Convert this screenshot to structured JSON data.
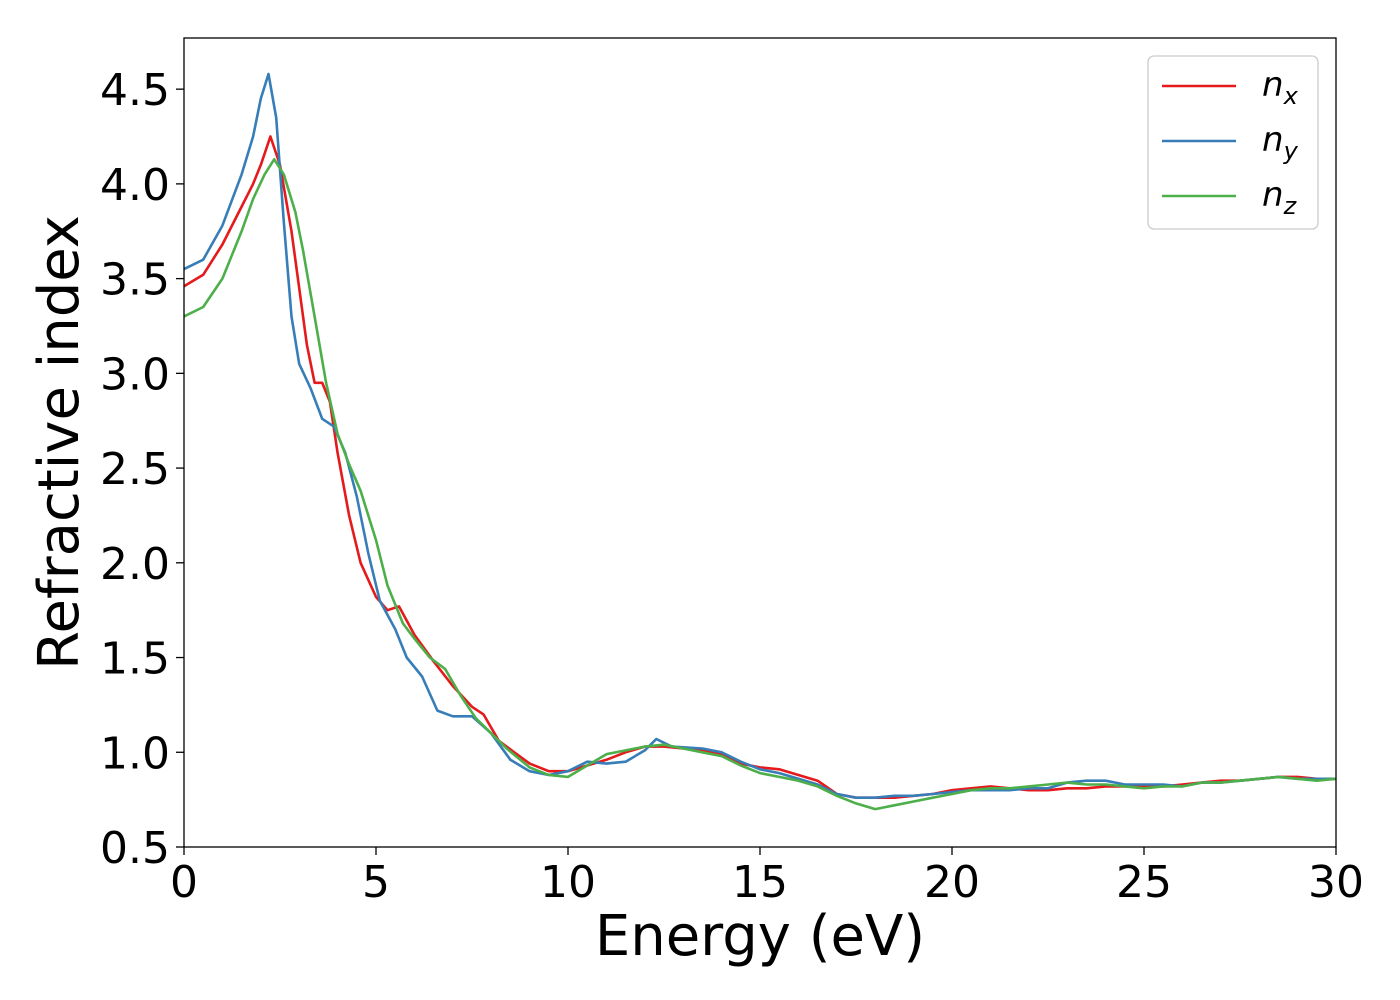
{
  "chart_data": {
    "type": "line",
    "title": "",
    "xlabel": "Energy (eV)",
    "ylabel": "Refractive index",
    "xlim": [
      0,
      30
    ],
    "ylim": [
      0.5,
      4.77
    ],
    "xticks": [
      "0",
      "5",
      "10",
      "15",
      "20",
      "25",
      "30"
    ],
    "xtick_values": [
      0,
      5,
      10,
      15,
      20,
      25,
      30
    ],
    "yticks": [
      "0.5",
      "1.0",
      "1.5",
      "2.0",
      "2.5",
      "3.0",
      "3.5",
      "4.0",
      "4.5"
    ],
    "ytick_values": [
      0.5,
      1.0,
      1.5,
      2.0,
      2.5,
      3.0,
      3.5,
      4.0,
      4.5
    ],
    "grid": false,
    "legend_position": "top-right",
    "series": [
      {
        "name": "n_x",
        "label_base": "n",
        "label_sub": "x",
        "color": "#e41a1c",
        "points": [
          [
            0,
            3.46
          ],
          [
            0.5,
            3.52
          ],
          [
            1.0,
            3.68
          ],
          [
            1.5,
            3.88
          ],
          [
            1.8,
            4.0
          ],
          [
            2.0,
            4.1
          ],
          [
            2.25,
            4.25
          ],
          [
            2.5,
            4.1
          ],
          [
            2.8,
            3.75
          ],
          [
            3.0,
            3.45
          ],
          [
            3.2,
            3.15
          ],
          [
            3.4,
            2.95
          ],
          [
            3.6,
            2.95
          ],
          [
            3.8,
            2.85
          ],
          [
            4.0,
            2.58
          ],
          [
            4.3,
            2.25
          ],
          [
            4.6,
            2.0
          ],
          [
            5.0,
            1.82
          ],
          [
            5.3,
            1.75
          ],
          [
            5.6,
            1.77
          ],
          [
            6.0,
            1.62
          ],
          [
            6.5,
            1.48
          ],
          [
            7.0,
            1.35
          ],
          [
            7.5,
            1.24
          ],
          [
            7.8,
            1.2
          ],
          [
            8.2,
            1.06
          ],
          [
            8.6,
            1.0
          ],
          [
            9.0,
            0.94
          ],
          [
            9.5,
            0.9
          ],
          [
            10.0,
            0.9
          ],
          [
            10.5,
            0.93
          ],
          [
            11.0,
            0.96
          ],
          [
            11.5,
            1.0
          ],
          [
            12.0,
            1.03
          ],
          [
            12.5,
            1.03
          ],
          [
            13.0,
            1.02
          ],
          [
            13.5,
            1.01
          ],
          [
            14.0,
            0.99
          ],
          [
            14.5,
            0.94
          ],
          [
            15.0,
            0.92
          ],
          [
            15.5,
            0.91
          ],
          [
            16.0,
            0.88
          ],
          [
            16.5,
            0.85
          ],
          [
            17.0,
            0.78
          ],
          [
            17.5,
            0.76
          ],
          [
            18.0,
            0.76
          ],
          [
            18.5,
            0.76
          ],
          [
            19.0,
            0.77
          ],
          [
            19.5,
            0.78
          ],
          [
            20.0,
            0.8
          ],
          [
            20.5,
            0.81
          ],
          [
            21.0,
            0.82
          ],
          [
            21.5,
            0.81
          ],
          [
            22.0,
            0.8
          ],
          [
            22.5,
            0.8
          ],
          [
            23.0,
            0.81
          ],
          [
            23.5,
            0.81
          ],
          [
            24.0,
            0.82
          ],
          [
            24.5,
            0.82
          ],
          [
            25.0,
            0.82
          ],
          [
            25.5,
            0.82
          ],
          [
            26.0,
            0.83
          ],
          [
            26.5,
            0.84
          ],
          [
            27.0,
            0.85
          ],
          [
            27.5,
            0.85
          ],
          [
            28.0,
            0.86
          ],
          [
            28.5,
            0.87
          ],
          [
            29.0,
            0.87
          ],
          [
            29.5,
            0.86
          ],
          [
            30.0,
            0.86
          ]
        ]
      },
      {
        "name": "n_y",
        "label_base": "n",
        "label_sub": "y",
        "color": "#377eb8",
        "points": [
          [
            0,
            3.55
          ],
          [
            0.5,
            3.6
          ],
          [
            1.0,
            3.78
          ],
          [
            1.5,
            4.05
          ],
          [
            1.8,
            4.25
          ],
          [
            2.0,
            4.45
          ],
          [
            2.2,
            4.58
          ],
          [
            2.4,
            4.35
          ],
          [
            2.6,
            3.8
          ],
          [
            2.8,
            3.3
          ],
          [
            3.0,
            3.05
          ],
          [
            3.3,
            2.92
          ],
          [
            3.6,
            2.76
          ],
          [
            3.9,
            2.72
          ],
          [
            4.2,
            2.58
          ],
          [
            4.5,
            2.35
          ],
          [
            4.8,
            2.05
          ],
          [
            5.1,
            1.8
          ],
          [
            5.5,
            1.65
          ],
          [
            5.8,
            1.5
          ],
          [
            6.2,
            1.4
          ],
          [
            6.6,
            1.22
          ],
          [
            7.0,
            1.19
          ],
          [
            7.5,
            1.19
          ],
          [
            8.0,
            1.1
          ],
          [
            8.5,
            0.96
          ],
          [
            9.0,
            0.9
          ],
          [
            9.5,
            0.88
          ],
          [
            10.0,
            0.9
          ],
          [
            10.5,
            0.95
          ],
          [
            11.0,
            0.94
          ],
          [
            11.5,
            0.95
          ],
          [
            12.0,
            1.01
          ],
          [
            12.3,
            1.07
          ],
          [
            12.7,
            1.03
          ],
          [
            13.5,
            1.02
          ],
          [
            14.0,
            1.0
          ],
          [
            14.5,
            0.95
          ],
          [
            15.0,
            0.91
          ],
          [
            15.5,
            0.89
          ],
          [
            16.0,
            0.86
          ],
          [
            16.5,
            0.83
          ],
          [
            17.0,
            0.78
          ],
          [
            17.5,
            0.76
          ],
          [
            18.0,
            0.76
          ],
          [
            18.5,
            0.77
          ],
          [
            19.0,
            0.77
          ],
          [
            19.5,
            0.78
          ],
          [
            20.0,
            0.79
          ],
          [
            20.5,
            0.8
          ],
          [
            21.0,
            0.8
          ],
          [
            21.5,
            0.8
          ],
          [
            22.0,
            0.81
          ],
          [
            22.5,
            0.81
          ],
          [
            23.0,
            0.84
          ],
          [
            23.5,
            0.85
          ],
          [
            24.0,
            0.85
          ],
          [
            24.5,
            0.83
          ],
          [
            25.0,
            0.83
          ],
          [
            25.5,
            0.83
          ],
          [
            26.0,
            0.82
          ],
          [
            26.5,
            0.84
          ],
          [
            27.0,
            0.84
          ],
          [
            27.5,
            0.85
          ],
          [
            28.0,
            0.86
          ],
          [
            28.5,
            0.87
          ],
          [
            29.0,
            0.86
          ],
          [
            29.5,
            0.86
          ],
          [
            30.0,
            0.86
          ]
        ]
      },
      {
        "name": "n_z",
        "label_base": "n",
        "label_sub": "z",
        "color": "#4daf4a",
        "points": [
          [
            0,
            3.3
          ],
          [
            0.5,
            3.35
          ],
          [
            1.0,
            3.5
          ],
          [
            1.5,
            3.75
          ],
          [
            1.8,
            3.92
          ],
          [
            2.1,
            4.05
          ],
          [
            2.35,
            4.13
          ],
          [
            2.6,
            4.05
          ],
          [
            2.9,
            3.85
          ],
          [
            3.1,
            3.65
          ],
          [
            3.4,
            3.3
          ],
          [
            3.7,
            2.95
          ],
          [
            4.0,
            2.68
          ],
          [
            4.3,
            2.52
          ],
          [
            4.6,
            2.38
          ],
          [
            5.0,
            2.12
          ],
          [
            5.3,
            1.88
          ],
          [
            5.7,
            1.68
          ],
          [
            6.0,
            1.6
          ],
          [
            6.4,
            1.5
          ],
          [
            6.8,
            1.44
          ],
          [
            7.2,
            1.3
          ],
          [
            7.6,
            1.18
          ],
          [
            8.0,
            1.1
          ],
          [
            8.4,
            1.02
          ],
          [
            9.0,
            0.92
          ],
          [
            9.5,
            0.88
          ],
          [
            10.0,
            0.87
          ],
          [
            10.5,
            0.93
          ],
          [
            11.0,
            0.99
          ],
          [
            11.5,
            1.01
          ],
          [
            12.0,
            1.03
          ],
          [
            12.5,
            1.04
          ],
          [
            13.0,
            1.02
          ],
          [
            13.5,
            1.0
          ],
          [
            14.0,
            0.98
          ],
          [
            14.5,
            0.93
          ],
          [
            15.0,
            0.89
          ],
          [
            15.5,
            0.87
          ],
          [
            16.0,
            0.85
          ],
          [
            16.5,
            0.82
          ],
          [
            17.0,
            0.77
          ],
          [
            17.5,
            0.73
          ],
          [
            18.0,
            0.7
          ],
          [
            18.5,
            0.72
          ],
          [
            19.0,
            0.74
          ],
          [
            19.5,
            0.76
          ],
          [
            20.0,
            0.78
          ],
          [
            20.5,
            0.8
          ],
          [
            21.0,
            0.81
          ],
          [
            21.5,
            0.81
          ],
          [
            22.0,
            0.82
          ],
          [
            22.5,
            0.83
          ],
          [
            23.0,
            0.84
          ],
          [
            23.5,
            0.83
          ],
          [
            24.0,
            0.83
          ],
          [
            24.5,
            0.82
          ],
          [
            25.0,
            0.81
          ],
          [
            25.5,
            0.82
          ],
          [
            26.0,
            0.82
          ],
          [
            26.5,
            0.84
          ],
          [
            27.0,
            0.84
          ],
          [
            27.5,
            0.85
          ],
          [
            28.0,
            0.86
          ],
          [
            28.5,
            0.87
          ],
          [
            29.0,
            0.86
          ],
          [
            29.5,
            0.85
          ],
          [
            30.0,
            0.86
          ]
        ]
      }
    ]
  }
}
